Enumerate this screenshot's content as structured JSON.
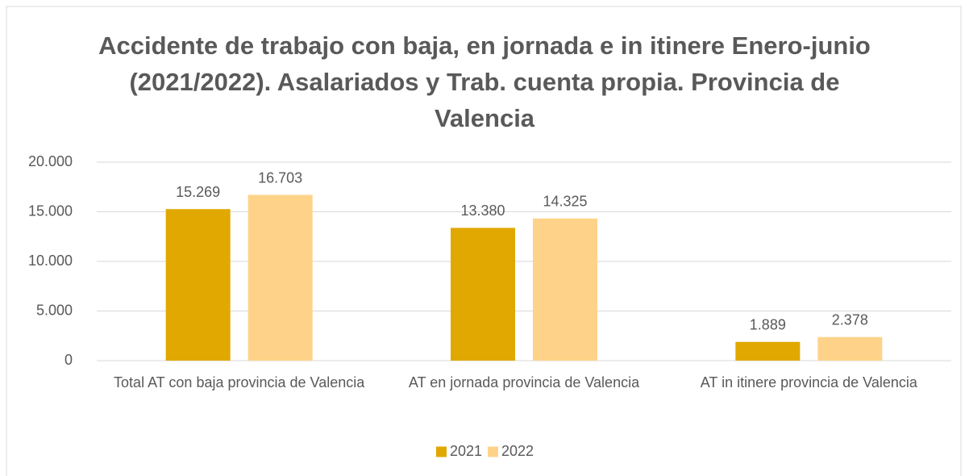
{
  "chart_data": {
    "type": "bar",
    "title": "Accidente de trabajo con baja, en jornada e in itinere Enero-junio (2021/2022). Asalariados y Trab. cuenta propia. Provincia de Valencia",
    "categories": [
      "Total AT con baja provincia de Valencia",
      "AT en jornada provincia de Valencia",
      "AT in itinere provincia de Valencia"
    ],
    "series": [
      {
        "name": "2021",
        "color": "#e0a800",
        "values": [
          15269,
          13380,
          1889
        ],
        "value_labels": [
          "15.269",
          "13.380",
          "1.889"
        ]
      },
      {
        "name": "2022",
        "color": "#fed389",
        "values": [
          16703,
          14325,
          2378
        ],
        "value_labels": [
          "16.703",
          "14.325",
          "2.378"
        ]
      }
    ],
    "ylim": [
      0,
      20000
    ],
    "yticks": [
      0,
      {
        "value": 5000,
        "label": "5.000"
      },
      {
        "value": 10000,
        "label": "10.000"
      },
      {
        "value": 15000,
        "label": "15.000"
      },
      {
        "value": 20000,
        "label": "20.000"
      }
    ],
    "grid": true,
    "legend": "bottom"
  }
}
